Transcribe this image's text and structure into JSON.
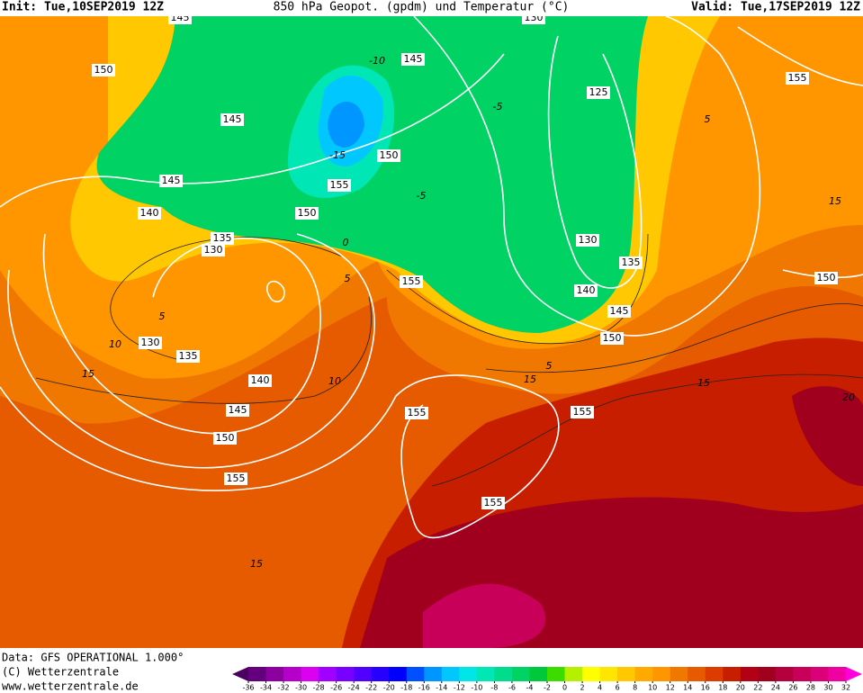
{
  "header": {
    "init": "Init: Tue,10SEP2019 12Z",
    "title": "850 hPa Geopot. (gpdm) und Temperatur (°C)",
    "valid": "Valid: Tue,17SEP2019 12Z"
  },
  "map": {
    "geopotential_labels": [
      "145",
      "130",
      "150",
      "145",
      "145",
      "140",
      "135",
      "130",
      "130",
      "135",
      "140",
      "145",
      "150",
      "155",
      "145",
      "150",
      "155",
      "150",
      "155",
      "125",
      "130",
      "135",
      "140",
      "145",
      "150",
      "155",
      "150",
      "155",
      "155",
      "155"
    ],
    "temperature_labels": [
      "-10",
      "-15",
      "-5",
      "0",
      "5",
      "5",
      "10",
      "15",
      "10",
      "5",
      "15",
      "15",
      "20",
      "5",
      "15",
      "-5",
      "15"
    ]
  },
  "footer": {
    "data": "Data: GFS OPERATIONAL 1.000°",
    "copyright": "(C) Wetterzentrale",
    "url": "www.wetterzentrale.de"
  },
  "colorbar": {
    "ticks": [
      -36,
      -34,
      -32,
      -30,
      -28,
      -26,
      -24,
      -22,
      -20,
      -18,
      -16,
      -14,
      -12,
      -10,
      -8,
      -6,
      -4,
      -2,
      0,
      2,
      4,
      6,
      8,
      10,
      12,
      14,
      16,
      18,
      20,
      22,
      24,
      26,
      28,
      30,
      32
    ],
    "colors": [
      "#4b0060",
      "#64007d",
      "#8c00a0",
      "#b400c8",
      "#dc00f0",
      "#a000ff",
      "#7800ff",
      "#5000ff",
      "#2800ff",
      "#0000ff",
      "#0050ff",
      "#0096ff",
      "#00c8ff",
      "#00e6e6",
      "#00e6b4",
      "#00dc8c",
      "#00d264",
      "#00c83c",
      "#3cdc00",
      "#b4f000",
      "#ffff00",
      "#ffe600",
      "#ffc800",
      "#ffaa00",
      "#ff9600",
      "#f07800",
      "#e65a00",
      "#dc3c00",
      "#c81e00",
      "#b40014",
      "#a0001e",
      "#b4003c",
      "#c8005a",
      "#dc0078",
      "#f000a0",
      "#ff00dc"
    ]
  }
}
